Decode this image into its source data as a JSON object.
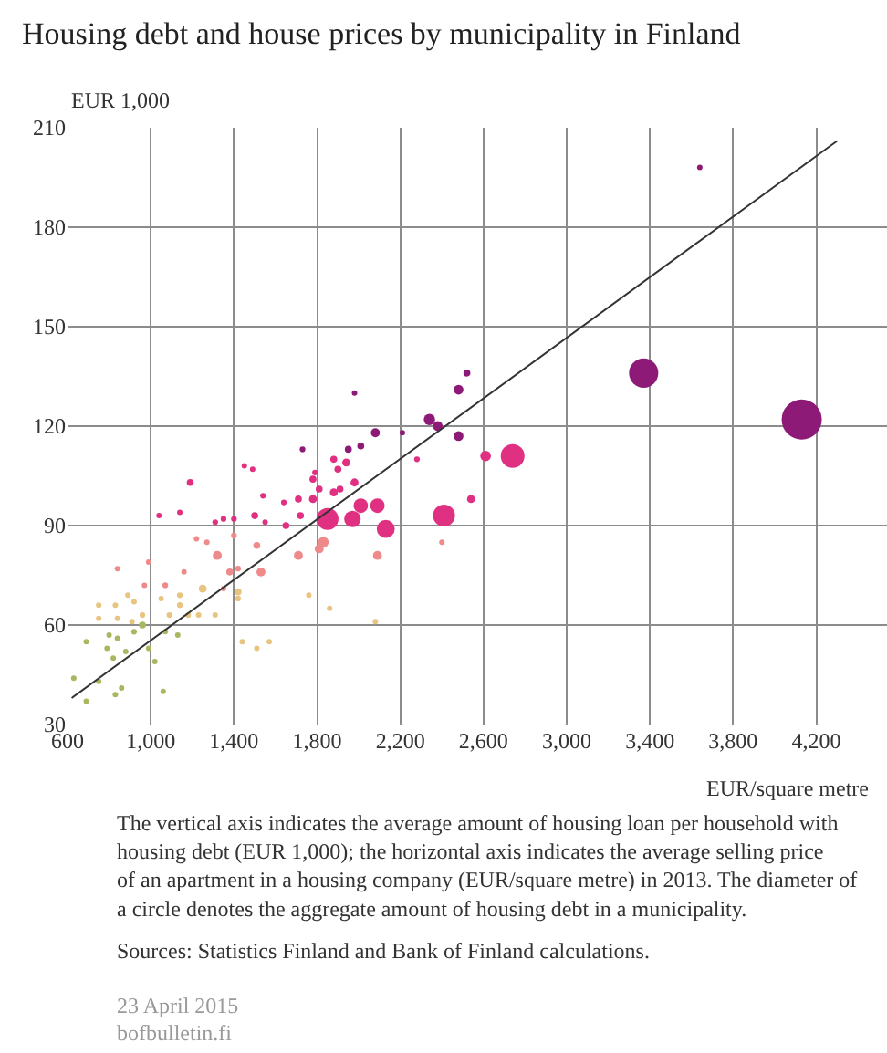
{
  "chart_data": {
    "type": "bubble",
    "title": "Housing debt and house prices by municipality in Finland",
    "ylabel": "EUR 1,000",
    "xlabel": "EUR/square metre",
    "xlim": [
      600,
      4540
    ],
    "xticks": [
      {
        "value": 600,
        "label": "600"
      },
      {
        "value": 1000,
        "label": "1,000"
      },
      {
        "value": 1400,
        "label": "1,400"
      },
      {
        "value": 1800,
        "label": "1,800"
      },
      {
        "value": 2200,
        "label": "2,200"
      },
      {
        "value": 2600,
        "label": "2,600"
      },
      {
        "value": 3000,
        "label": "3,000"
      },
      {
        "value": 3400,
        "label": "3,400"
      },
      {
        "value": 3800,
        "label": "3,800"
      },
      {
        "value": 4200,
        "label": "4,200"
      }
    ],
    "ylim": [
      30,
      210
    ],
    "yticks": [
      30,
      60,
      90,
      120,
      150,
      180,
      210
    ],
    "grid": true,
    "series": [
      {
        "x": [
          4130,
          3370,
          3640,
          2740,
          2410,
          1850,
          2130,
          1970,
          2010,
          2090,
          2610,
          2540,
          2520,
          2480,
          2340,
          2380,
          2480,
          2080,
          2210,
          1980,
          2010,
          1950,
          1730,
          1880,
          1940,
          1900,
          2280,
          1980,
          1880,
          1910,
          1780,
          1790,
          1810,
          1710,
          1640,
          1780,
          1720,
          1650,
          1830,
          1810,
          1710,
          2090,
          2400,
          1190,
          1040,
          1140,
          1310,
          1350,
          1400,
          1450,
          1490,
          1500,
          1540,
          1550,
          1510,
          1400,
          1320,
          1530,
          1380,
          1420,
          1270,
          1220,
          1160,
          1070,
          970,
          840,
          990,
          1350,
          1760,
          1860,
          2080,
          1250,
          1140,
          1140,
          1050,
          1180,
          1230,
          1310,
          1420,
          1420,
          1090,
          960,
          840,
          830,
          750,
          890,
          920,
          910,
          750,
          960,
          920,
          840,
          800,
          990,
          880,
          790,
          690,
          820,
          1070,
          1130,
          1020,
          750,
          630,
          860,
          830,
          1060,
          690,
          1440,
          1510,
          1570
        ],
        "values": [
          122,
          136,
          198,
          111,
          93,
          92,
          89,
          92,
          96,
          96,
          111,
          98,
          136,
          131,
          122,
          120,
          117,
          118,
          118,
          130,
          114,
          113,
          113,
          110,
          109,
          107,
          110,
          103,
          100,
          101,
          104,
          106,
          101,
          98,
          97,
          98,
          93,
          90,
          85,
          83,
          81,
          81,
          85,
          103,
          93,
          94,
          91,
          92,
          92,
          108,
          107,
          93,
          99,
          91,
          84,
          87,
          81,
          76,
          76,
          77,
          85,
          86,
          76,
          72,
          72,
          77,
          79,
          71,
          69,
          65,
          61,
          71,
          69,
          66,
          68,
          63,
          63,
          63,
          70,
          68,
          63,
          63,
          62,
          66,
          66,
          69,
          67,
          61,
          62,
          60,
          58,
          56,
          57,
          53,
          52,
          53,
          55,
          50,
          58,
          57,
          49,
          43,
          44,
          41,
          39,
          40,
          37,
          55,
          53,
          55
        ],
        "sizes": [
          1,
          0.53,
          0.01,
          0.35,
          0.3,
          0.3,
          0.2,
          0.17,
          0.13,
          0.13,
          0.07,
          0.04,
          0.03,
          0.06,
          0.08,
          0.06,
          0.06,
          0.05,
          0.01,
          0.01,
          0.03,
          0.03,
          0.02,
          0.03,
          0.04,
          0.03,
          0.02,
          0.04,
          0.04,
          0.03,
          0.03,
          0.02,
          0.03,
          0.03,
          0.02,
          0.04,
          0.03,
          0.03,
          0.07,
          0.05,
          0.05,
          0.05,
          0.01,
          0.03,
          0.01,
          0.01,
          0.02,
          0.02,
          0.02,
          0.01,
          0.01,
          0.03,
          0.02,
          0.01,
          0.03,
          0.02,
          0.05,
          0.05,
          0.03,
          0.02,
          0.01,
          0.01,
          0.01,
          0.02,
          0.01,
          0.01,
          0.01,
          0.01,
          0.01,
          0.01,
          0.01,
          0.04,
          0.02,
          0.02,
          0.01,
          0.02,
          0.01,
          0.01,
          0.03,
          0.02,
          0.02,
          0.02,
          0.01,
          0.01,
          0.01,
          0.01,
          0.01,
          0.01,
          0.01,
          0.03,
          0.02,
          0.01,
          0.01,
          0.01,
          0.01,
          0.01,
          0.01,
          0.01,
          0.01,
          0.01,
          0.01,
          0.01,
          0.01,
          0.01,
          0.01,
          0.01,
          0.01,
          0.01,
          0.01,
          0.01
        ],
        "colors": [
          "#8e1a78",
          "#8e1a78",
          "#8e1a78",
          "#e03082",
          "#e03082",
          "#e03082",
          "#e03082",
          "#e03082",
          "#e03082",
          "#e03082",
          "#e03082",
          "#e03082",
          "#8e1a78",
          "#8e1a78",
          "#8e1a78",
          "#8e1a78",
          "#8e1a78",
          "#8e1a78",
          "#8e1a78",
          "#8e1a78",
          "#8e1a78",
          "#8e1a78",
          "#8e1a78",
          "#e03082",
          "#e03082",
          "#e03082",
          "#e03082",
          "#e03082",
          "#e03082",
          "#e03082",
          "#e03082",
          "#e03082",
          "#e03082",
          "#e03082",
          "#e03082",
          "#e03082",
          "#e03082",
          "#e03082",
          "#ee8a8a",
          "#ee8a8a",
          "#ee8a8a",
          "#ee8a8a",
          "#ee8a8a",
          "#e03082",
          "#e03082",
          "#e03082",
          "#e03082",
          "#e03082",
          "#e03082",
          "#e03082",
          "#e03082",
          "#e03082",
          "#e03082",
          "#e03082",
          "#ee8a8a",
          "#ee8a8a",
          "#ee8a8a",
          "#ee8a8a",
          "#ee8a8a",
          "#ee8a8a",
          "#ee8a8a",
          "#ee8a8a",
          "#ee8a8a",
          "#ee8a8a",
          "#ee8a8a",
          "#ee8a8a",
          "#ee8a8a",
          "#ee8a8a",
          "#e8c480",
          "#e8c480",
          "#e8c480",
          "#e8c480",
          "#e8c480",
          "#e8c480",
          "#e8c480",
          "#e8c480",
          "#e8c480",
          "#e8c480",
          "#e8c480",
          "#e8c480",
          "#e8c480",
          "#e8c480",
          "#e8c480",
          "#e8c480",
          "#e8c480",
          "#e8c480",
          "#e8c480",
          "#e8c480",
          "#e8c480",
          "#a8b860",
          "#a8b860",
          "#a8b860",
          "#a8b860",
          "#a8b860",
          "#a8b860",
          "#a8b860",
          "#a8b860",
          "#a8b860",
          "#a8b860",
          "#a8b860",
          "#a8b860",
          "#a8b860",
          "#a8b860",
          "#a8b860",
          "#a8b860",
          "#a8b860",
          "#a8b860",
          "#e8c480",
          "#e8c480",
          "#e8c480"
        ]
      },
      {
        "type": "line",
        "x": [
          620,
          4300
        ],
        "values": [
          38,
          206
        ],
        "color": "#333333"
      }
    ],
    "annotations": [
      "The vertical axis indicates the average amount of housing loan per household with housing debt (EUR 1,000); the horizontal axis indicates the average selling price of an apartment in a housing company (EUR/square metre) in 2013. The diameter of a circle denotes the aggregate amount of housing debt in a municipality.",
      "Sources: Statistics Finland and Bank of Finland calculations.",
      "23 April 2015",
      "bofbulletin.fi"
    ]
  }
}
